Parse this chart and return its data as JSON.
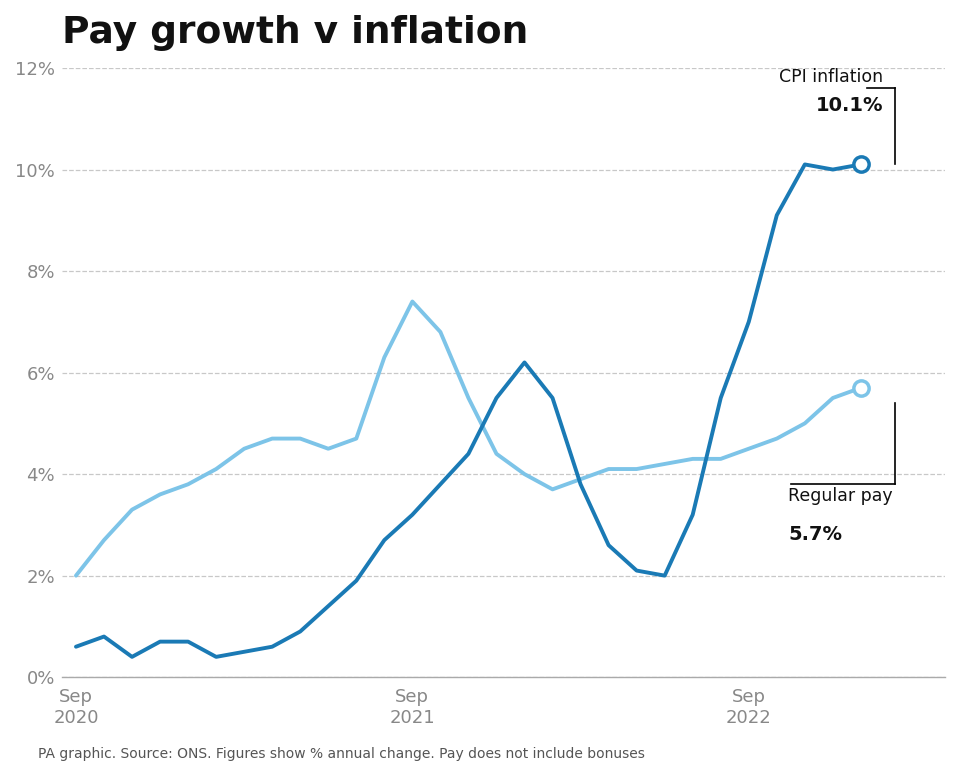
{
  "title": "Pay growth v inflation",
  "footer": "PA graphic. Source: ONS. Figures show % annual change. Pay does not include bonuses",
  "cpi_label": "CPI inflation",
  "cpi_value_label": "10.1%",
  "pay_label": "Regular pay",
  "pay_value_label": "5.7%",
  "ylim": [
    0,
    12
  ],
  "yticks": [
    0,
    2,
    4,
    6,
    8,
    10,
    12
  ],
  "ytick_labels": [
    "0%",
    "2%",
    "4%",
    "6%",
    "8%",
    "10%",
    "12%"
  ],
  "background_color": "#ffffff",
  "cpi_color": "#1a7ab5",
  "pay_color": "#7dc4e8",
  "grid_color": "#c8c8c8",
  "cpi_data_x": [
    0,
    1,
    2,
    3,
    4,
    5,
    6,
    7,
    8,
    9,
    10,
    11,
    12,
    13,
    14,
    15,
    16,
    17,
    18,
    19,
    20,
    21,
    22,
    23,
    24,
    25,
    26,
    27,
    28
  ],
  "cpi_data_y": [
    0.6,
    0.8,
    0.4,
    0.7,
    0.7,
    0.4,
    0.5,
    0.6,
    0.9,
    1.4,
    1.9,
    2.7,
    3.2,
    3.8,
    4.4,
    5.5,
    6.2,
    5.5,
    3.8,
    2.6,
    2.1,
    2.0,
    3.2,
    5.5,
    7.0,
    9.1,
    10.1,
    10.0,
    10.1
  ],
  "pay_data_x": [
    0,
    1,
    2,
    3,
    4,
    5,
    6,
    7,
    8,
    9,
    10,
    11,
    12,
    13,
    14,
    15,
    16,
    17,
    18,
    19,
    20,
    21,
    22,
    23,
    24,
    25,
    26,
    27,
    28
  ],
  "pay_data_y": [
    2.0,
    2.7,
    3.3,
    3.6,
    3.8,
    4.1,
    4.5,
    4.7,
    4.7,
    4.5,
    4.7,
    6.3,
    7.4,
    6.8,
    5.5,
    4.4,
    4.0,
    3.7,
    3.9,
    4.1,
    4.1,
    4.2,
    4.3,
    4.3,
    4.5,
    4.7,
    5.0,
    5.5,
    5.7
  ],
  "sep2020_idx": 0,
  "sep2021_idx": 12,
  "sep2022_idx": 24
}
